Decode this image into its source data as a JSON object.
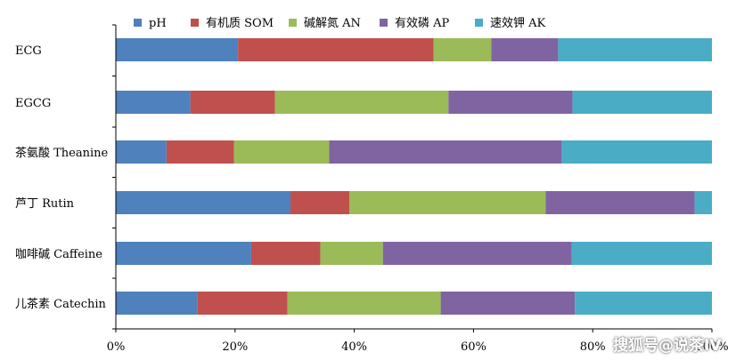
{
  "chart_data": {
    "type": "bar",
    "orientation": "horizontal",
    "stacked": "percent",
    "categories": [
      "ECG",
      "EGCG",
      "茶氨酸 Theanine",
      "芦丁 Rutin",
      "咖啡碱 Caffeine",
      "儿茶素 Catechin"
    ],
    "series": [
      {
        "name": "pH",
        "color": "#4f81bd",
        "values": [
          20.5,
          12.5,
          8.5,
          29.3,
          22.7,
          13.7
        ]
      },
      {
        "name": "有机质 SOM",
        "color": "#c0504d",
        "values": [
          32.8,
          14.2,
          11.3,
          9.9,
          11.6,
          15.1
        ]
      },
      {
        "name": "碱解氮 AN",
        "color": "#9bbb59",
        "values": [
          9.7,
          29.1,
          16.0,
          32.9,
          10.5,
          25.7
        ]
      },
      {
        "name": "有效磷 AP",
        "color": "#8064a2",
        "values": [
          11.2,
          20.8,
          39.0,
          25.0,
          31.7,
          22.5
        ]
      },
      {
        "name": "速效钾 AK",
        "color": "#4bacc6",
        "values": [
          25.8,
          23.4,
          25.2,
          2.9,
          23.5,
          23.0
        ]
      }
    ],
    "xlim": [
      0,
      100
    ],
    "xticks": [
      "0%",
      "20%",
      "40%",
      "60%",
      "80%",
      "100%"
    ],
    "legend_position": "top",
    "grid": false
  },
  "watermark": "搜狐号@说茶IV"
}
